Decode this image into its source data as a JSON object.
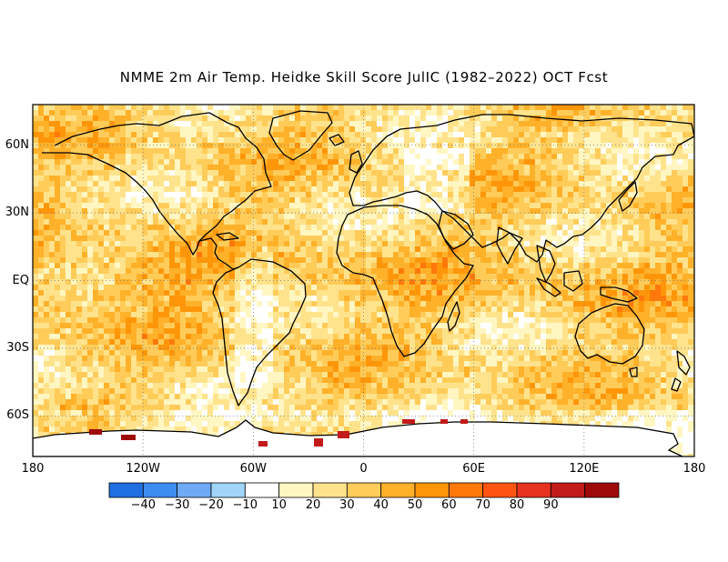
{
  "title": "NMME 2m Air Temp. Heidke Skill Score JulIC (1982–2022) OCT Fcst",
  "map": {
    "projection": "equirectangular",
    "lon_range": [
      -180,
      180
    ],
    "lat_range": [
      -78,
      78
    ],
    "x_ticks": [
      "180",
      "120W",
      "60W",
      "0",
      "60E",
      "120E",
      "180"
    ],
    "y_ticks": [
      "60N",
      "30N",
      "EQ",
      "30S",
      "60S"
    ],
    "gridlines": "dotted",
    "land_outline_color": "#000000"
  },
  "colorbar": {
    "colors": [
      "#1f6fe0",
      "#3d8cf0",
      "#6eaaf5",
      "#a0d4f8",
      "#ffffff",
      "#fff6c2",
      "#ffe38c",
      "#ffcc5a",
      "#ffb12a",
      "#ff960a",
      "#ff780a",
      "#ff5412",
      "#e6321e",
      "#c31a1a",
      "#9e0a0a"
    ],
    "labels": [
      "−40",
      "−30",
      "−20",
      "−10",
      "10",
      "20",
      "30",
      "40",
      "50",
      "60",
      "70",
      "80",
      "90"
    ]
  }
}
